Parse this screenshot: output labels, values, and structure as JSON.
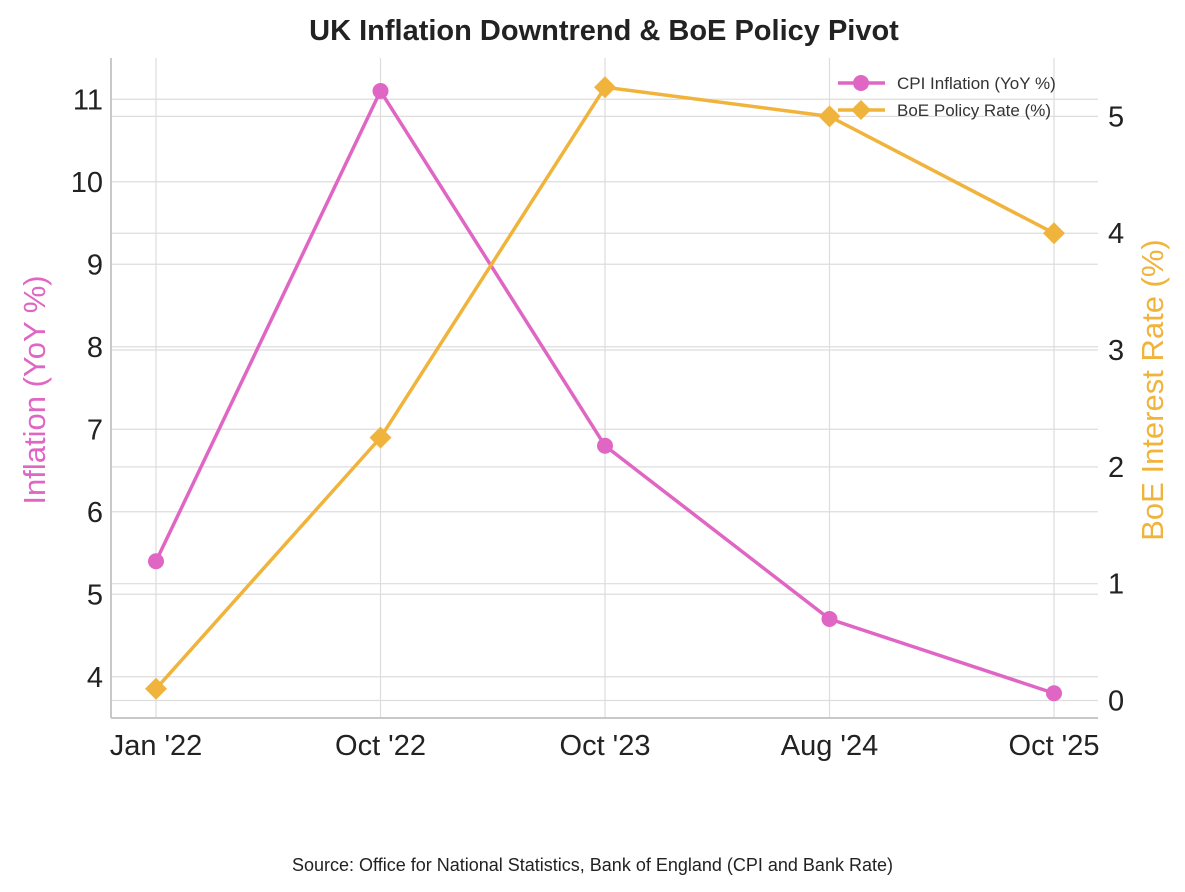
{
  "chart_data": {
    "type": "line",
    "title": "UK Inflation Downtrend & BoE Policy Pivot",
    "categories": [
      "Jan '22",
      "Oct '22",
      "Oct '23",
      "Aug '24",
      "Oct '25"
    ],
    "series": [
      {
        "name": "CPI Inflation (YoY %)",
        "axis": "left",
        "marker": "circle",
        "color": "#e066c4",
        "values": [
          5.4,
          11.1,
          6.8,
          4.7,
          3.8
        ]
      },
      {
        "name": "BoE Policy Rate (%)",
        "axis": "right",
        "marker": "diamond",
        "color": "#f0b43c",
        "values": [
          0.1,
          2.25,
          5.25,
          5.0,
          4.0
        ]
      }
    ],
    "ylabel_left": "Inflation (YoY %)",
    "ylabel_right": "BoE Interest Rate (%)",
    "ylim_left": [
      3.5,
      11.5
    ],
    "yticks_left": [
      "4",
      "5",
      "6",
      "7",
      "8",
      "9",
      "10",
      "11"
    ],
    "ylim_right": [
      -0.15,
      5.5
    ],
    "yticks_right": [
      "0",
      "1",
      "2",
      "3",
      "4",
      "5"
    ],
    "grid": true,
    "legend_position": "top-right",
    "source": "Source: Office for National Statistics, Bank of England (CPI and Bank Rate)"
  }
}
